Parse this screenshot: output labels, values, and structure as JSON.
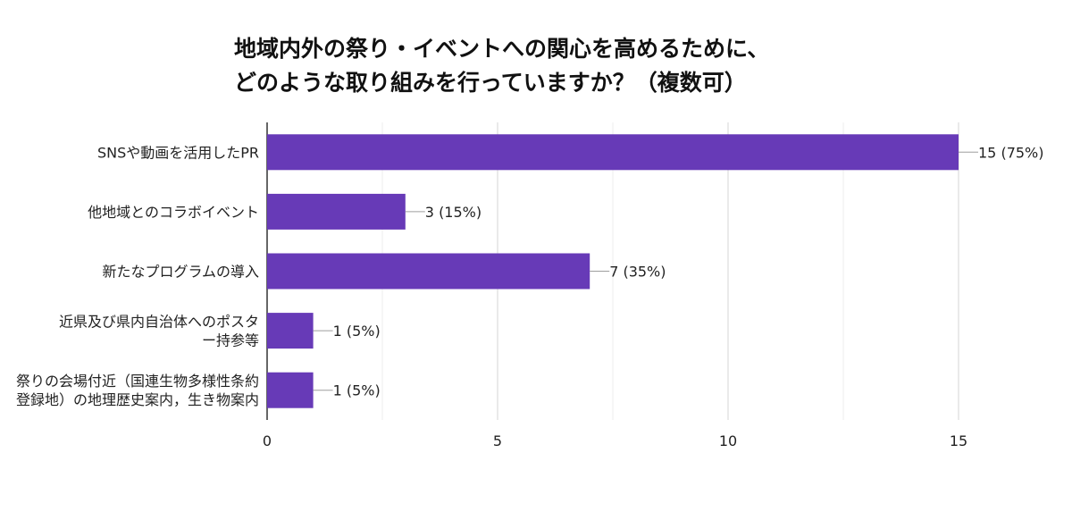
{
  "chart_data": {
    "type": "bar",
    "orientation": "horizontal",
    "title_lines": [
      "地域内外の祭り・イベントへの関心を高めるために、",
      "どのような取り組みを行っていますか？（複数可）"
    ],
    "categories": [
      [
        "SNSや動画を活用したPR"
      ],
      [
        "他地域とのコラボイベント"
      ],
      [
        "新たなプログラムの導入"
      ],
      [
        "近県及び県内自治体へのポスタ",
        "ー持参等"
      ],
      [
        "祭りの会場付近（国連生物多様性条約",
        "登録地）の地理歴史案内，生き物案内"
      ]
    ],
    "values": [
      15,
      3,
      7,
      1,
      1
    ],
    "data_labels": [
      "15 (75%)",
      "3 (15%)",
      "7 (35%)",
      "1 (5%)",
      "1 (5%)"
    ],
    "xlim": [
      0,
      15
    ],
    "xticks": [
      0,
      5,
      10,
      15
    ],
    "grid": true,
    "bar_color": "#673ab7"
  }
}
